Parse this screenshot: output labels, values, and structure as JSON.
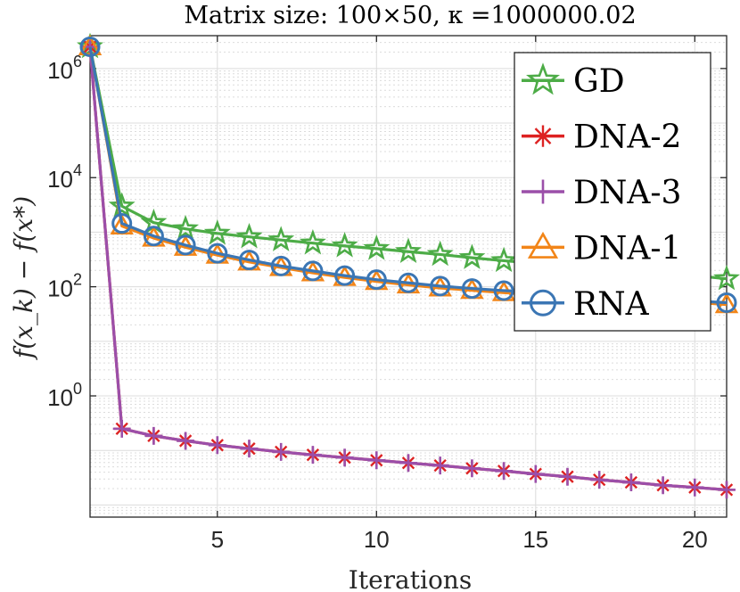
{
  "chart_data": {
    "type": "line",
    "title": "Matrix size:  100×50,  κ =1000000.02",
    "xlabel": "Iterations",
    "ylabel": "f(x_k) − f(x*)",
    "yscale": "log",
    "xlim": [
      1,
      21
    ],
    "ylim": [
      0.006,
      4000000
    ],
    "grid": true,
    "legend_location": "top-right",
    "x_ticks": [
      5,
      10,
      15,
      20
    ],
    "x_tick_labels": [
      "5",
      "10",
      "15",
      "20"
    ],
    "y_ticks": [
      1,
      100,
      10000,
      1000000
    ],
    "y_tick_labels": [
      {
        "base": "10",
        "exp": "0"
      },
      {
        "base": "10",
        "exp": "2"
      },
      {
        "base": "10",
        "exp": "4"
      },
      {
        "base": "10",
        "exp": "6"
      }
    ],
    "x": [
      1,
      2,
      3,
      4,
      5,
      6,
      7,
      8,
      9,
      10,
      11,
      12,
      13,
      14,
      15,
      16,
      17,
      18,
      19,
      20,
      21
    ],
    "series": [
      {
        "name": "GD",
        "color": "#4dac47",
        "marker": "star",
        "values": [
          2500000,
          3000,
          1500,
          1150,
          950,
          820,
          720,
          630,
          560,
          500,
          440,
          390,
          340,
          300,
          270,
          240,
          215,
          195,
          175,
          160,
          140
        ]
      },
      {
        "name": "DNA-2",
        "color": "#dd2222",
        "marker": "asterisk",
        "values": [
          2500000,
          0.25,
          0.185,
          0.15,
          0.125,
          0.108,
          0.094,
          0.083,
          0.074,
          0.066,
          0.059,
          0.053,
          0.047,
          0.042,
          0.037,
          0.033,
          0.029,
          0.026,
          0.023,
          0.021,
          0.019
        ]
      },
      {
        "name": "DNA-3",
        "color": "#9b4fa9",
        "marker": "plus",
        "values": [
          2500000,
          0.25,
          0.185,
          0.15,
          0.125,
          0.108,
          0.094,
          0.083,
          0.074,
          0.066,
          0.059,
          0.053,
          0.047,
          0.042,
          0.037,
          0.033,
          0.029,
          0.026,
          0.023,
          0.021,
          0.019
        ]
      },
      {
        "name": "DNA-1",
        "color": "#f28518",
        "marker": "triangle",
        "values": [
          2500000,
          1300,
          780,
          530,
          380,
          285,
          225,
          180,
          148,
          125,
          108,
          95,
          86,
          78,
          72,
          67,
          63,
          59,
          55,
          52,
          47
        ]
      },
      {
        "name": "RNA",
        "color": "#3b76b4",
        "marker": "circle",
        "values": [
          2500000,
          1450,
          850,
          580,
          410,
          310,
          240,
          195,
          160,
          135,
          118,
          103,
          93,
          85,
          79,
          73,
          68,
          63,
          59,
          55,
          51
        ]
      }
    ]
  }
}
